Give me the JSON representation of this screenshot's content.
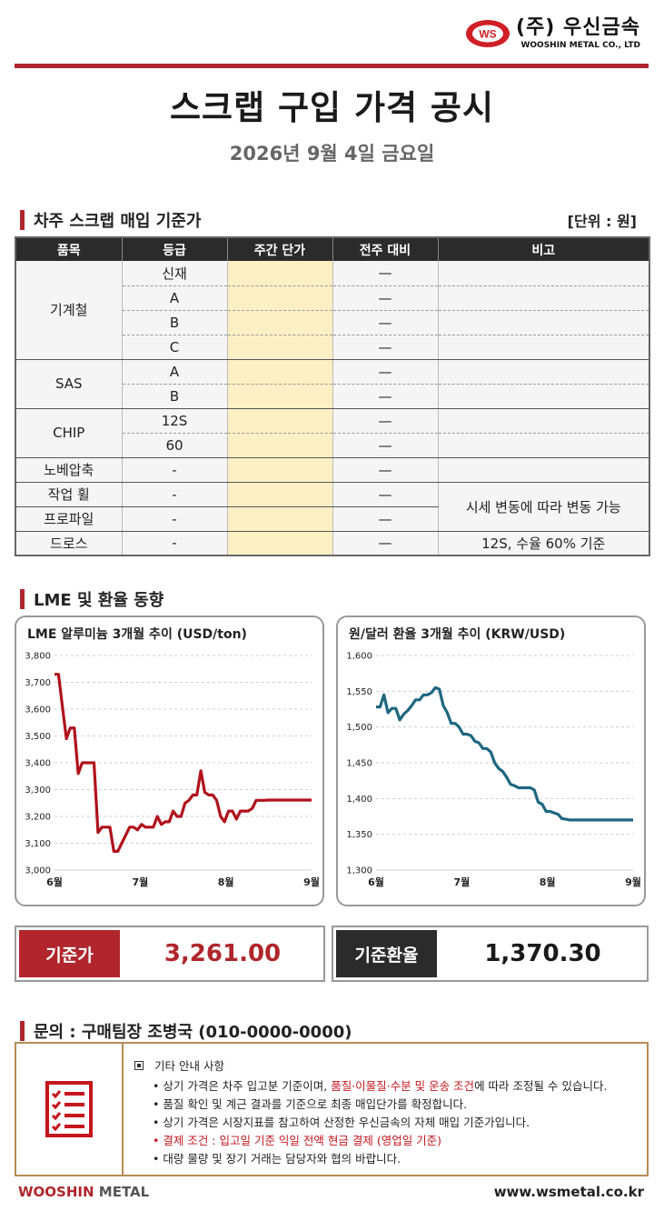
{
  "company": {
    "name_ko": "(주) 우신금속",
    "name_en": "WOOSHIN METAL CO., LTD",
    "logo_mark": "WS"
  },
  "page": {
    "title": "스크랩 구입 가격 공시",
    "date": "2026년 9월 4일 금요일"
  },
  "price_section": {
    "heading": "차주 스크랩 매입 기준가",
    "unit": "[단위 : 원]",
    "columns": [
      "품목",
      "등급",
      "주간 단가",
      "전주 대비",
      "비고"
    ],
    "groups": [
      {
        "item": "기계철",
        "grades": [
          "신재",
          "A",
          "B",
          "C"
        ]
      },
      {
        "item": "SAS",
        "grades": [
          "A",
          "B"
        ]
      },
      {
        "item": "CHIP",
        "grades": [
          "12S",
          "60"
        ]
      },
      {
        "item": "노베압축",
        "grades": [
          "-"
        ]
      },
      {
        "item": "작업 휠",
        "grades": [
          "-"
        ]
      },
      {
        "item": "프로파일",
        "grades": [
          "-"
        ]
      },
      {
        "item": "드로스",
        "grades": [
          "-"
        ]
      }
    ],
    "change_mark": "—",
    "note_variable": "시세 변동에 따라 변동 가능",
    "note_dross": "12S, 수율 60% 기준"
  },
  "trend_section": {
    "heading": "LME 및 환율 동향"
  },
  "chart_data": [
    {
      "type": "line",
      "title": "LME 알루미늄 3개월 추이 (USD/ton)",
      "xlabel": "",
      "ylabel": "",
      "ylim": [
        3000,
        3800
      ],
      "yticks": [
        "3,000",
        "3,100",
        "3,200",
        "3,300",
        "3,400",
        "3,500",
        "3,600",
        "3,700",
        "3,800"
      ],
      "xticks": [
        "6월",
        "7월",
        "8월",
        "9월"
      ],
      "grid": true,
      "color": "#b0121b",
      "x": [
        0,
        1,
        2,
        3,
        4,
        5,
        6,
        7,
        8,
        9,
        10,
        11,
        12,
        13,
        14,
        15,
        16,
        17,
        18,
        19,
        20,
        21,
        22,
        23,
        24,
        25,
        26,
        27,
        28,
        29,
        30,
        31,
        32,
        33,
        34,
        35,
        36,
        37,
        38,
        39,
        40,
        41,
        42,
        43,
        44,
        45,
        46,
        47,
        48,
        49,
        50,
        51,
        52,
        53,
        54,
        55,
        56,
        57,
        58,
        59,
        60,
        61,
        62,
        63,
        64,
        65
      ],
      "values": [
        3730,
        3730,
        3610,
        3490,
        3530,
        3530,
        3360,
        3400,
        3400,
        3400,
        3400,
        3140,
        3160,
        3160,
        3160,
        3070,
        3070,
        3100,
        3130,
        3160,
        3160,
        3150,
        3170,
        3160,
        3160,
        3160,
        3200,
        3170,
        3180,
        3180,
        3220,
        3200,
        3200,
        3250,
        3260,
        3280,
        3280,
        3370,
        3290,
        3280,
        3280,
        3260,
        3200,
        3180,
        3220,
        3220,
        3190,
        3220,
        3220,
        3220,
        3230,
        3260,
        3260,
        3260,
        3261,
        3261,
        3261,
        3261,
        3261,
        3261,
        3261,
        3261,
        3261,
        3261,
        3261,
        3261
      ]
    },
    {
      "type": "line",
      "title": "원/달러 환율 3개월 추이 (KRW/USD)",
      "xlabel": "",
      "ylabel": "",
      "ylim": [
        1300,
        1600
      ],
      "yticks": [
        "1,300",
        "1,350",
        "1,400",
        "1,450",
        "1,500",
        "1,550",
        "1,600"
      ],
      "xticks": [
        "6월",
        "7월",
        "8월",
        "9월"
      ],
      "grid": true,
      "color": "#1e6680",
      "x": [
        0,
        1,
        2,
        3,
        4,
        5,
        6,
        7,
        8,
        9,
        10,
        11,
        12,
        13,
        14,
        15,
        16,
        17,
        18,
        19,
        20,
        21,
        22,
        23,
        24,
        25,
        26,
        27,
        28,
        29,
        30,
        31,
        32,
        33,
        34,
        35,
        36,
        37,
        38,
        39,
        40,
        41,
        42,
        43,
        44,
        45,
        46,
        47,
        48,
        49,
        50,
        51,
        52,
        53,
        54,
        55,
        56,
        57,
        58,
        59,
        60,
        61,
        62,
        63,
        64,
        65
      ],
      "values": [
        1528,
        1528,
        1545,
        1520,
        1526,
        1526,
        1510,
        1518,
        1523,
        1530,
        1538,
        1538,
        1545,
        1545,
        1548,
        1555,
        1553,
        1530,
        1520,
        1505,
        1505,
        1500,
        1490,
        1490,
        1488,
        1480,
        1478,
        1470,
        1470,
        1465,
        1450,
        1442,
        1438,
        1430,
        1420,
        1418,
        1415,
        1415,
        1415,
        1415,
        1412,
        1395,
        1392,
        1382,
        1382,
        1380,
        1378,
        1372,
        1371,
        1370,
        1370,
        1370,
        1370,
        1370,
        1370,
        1370,
        1370,
        1370,
        1370,
        1370,
        1370,
        1370,
        1370,
        1370,
        1370,
        1370
      ]
    }
  ],
  "summary": {
    "base_price_label": "기준가",
    "base_price_value": "3,261.00",
    "base_fx_label": "기준환율",
    "base_fx_value": "1,370.30"
  },
  "contact": {
    "heading": "문의 : 구매팀장 조병국 (010-0000-0000)"
  },
  "notes": {
    "title": "기타 안내 사항",
    "line1_a": "• 상기 가격은 차주 입고분 기준이며, ",
    "line1_b": "품질·이물질·수분 및 운송 조건",
    "line1_c": "에 따라 조정될 수 있습니다.",
    "line2": "• 품질 확인 및 계근 결과를 기준으로 최종 매입단가를 확정합니다.",
    "line3": "• 상기 가격은 시장지표를 참고하여 산정한 우신금속의 자체 매입 기준가입니다.",
    "line4": "• 결제 조건 : 입고일 기준 익일 전액 현금 결제 (영업일 기준)",
    "line5": "• 대량 물량 및 장기 거래는 담당자와 협의 바랍니다."
  },
  "footer": {
    "brand_1": "WOOSHIN",
    "brand_2": " METAL",
    "url": "www.wsmetal.co.kr"
  },
  "colors": {
    "accent_red": "#b0262c",
    "dark": "#2b2b2b",
    "price_cell": "#fdf0c4",
    "info_border": "#b58d55"
  }
}
